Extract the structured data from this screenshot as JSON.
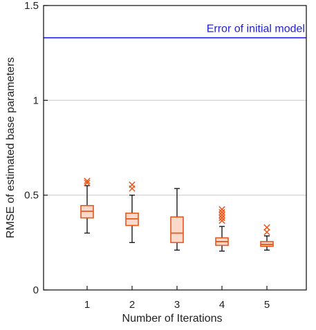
{
  "chart_data": {
    "type": "box",
    "xlabel": "Number of Iterations",
    "ylabel": "RMSE of estimated base parameters",
    "categories": [
      "1",
      "2",
      "3",
      "4",
      "5"
    ],
    "ylim": [
      0,
      1.5
    ],
    "yticks": [
      0,
      0.5,
      1,
      1.5
    ],
    "ytick_labels": [
      "0",
      "0.5",
      "1",
      "1.5"
    ],
    "grid": "horizontal",
    "boxes": [
      {
        "category": "1",
        "whisker_low": 0.3,
        "q1": 0.38,
        "median": 0.415,
        "q3": 0.445,
        "whisker_high": 0.55,
        "outliers": [
          0.565,
          0.575
        ]
      },
      {
        "category": "2",
        "whisker_low": 0.25,
        "q1": 0.34,
        "median": 0.375,
        "q3": 0.405,
        "whisker_high": 0.5,
        "outliers": [
          0.535,
          0.555
        ]
      },
      {
        "category": "3",
        "whisker_low": 0.21,
        "q1": 0.25,
        "median": 0.3,
        "q3": 0.385,
        "whisker_high": 0.535,
        "outliers": []
      },
      {
        "category": "4",
        "whisker_low": 0.205,
        "q1": 0.235,
        "median": 0.255,
        "q3": 0.275,
        "whisker_high": 0.335,
        "outliers": [
          0.365,
          0.38,
          0.395,
          0.41,
          0.425
        ]
      },
      {
        "category": "5",
        "whisker_low": 0.21,
        "q1": 0.23,
        "median": 0.24,
        "q3": 0.255,
        "whisker_high": 0.285,
        "outliers": [
          0.305,
          0.33
        ]
      }
    ],
    "reference_line": {
      "value": 1.33,
      "label": "Error of initial model",
      "color": "#1f1fd6"
    },
    "colors": {
      "box_edge": "#e8561c",
      "box_fill": "#fbd9cb",
      "whisker": "#1a1a1a",
      "outlier": "#e8561c",
      "grid": "#d9d9d9",
      "axis": "#1a1a1a"
    }
  }
}
